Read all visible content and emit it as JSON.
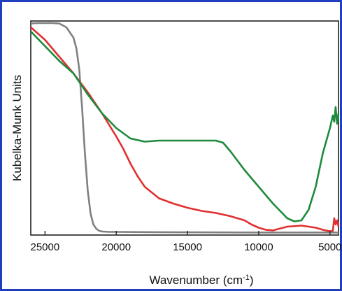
{
  "chart_data": {
    "type": "line",
    "xlabel": "Wavenumber (cm",
    "xlabel_sup": "-1",
    "xlabel_close": ")",
    "ylabel": "Kubelka-Munk Units",
    "xlim": [
      26000,
      4400
    ],
    "x_reversed": true,
    "ylim": [
      0,
      1
    ],
    "y_ticks_shown": false,
    "grid": false,
    "legend": "none",
    "x_ticks": [
      25000,
      20000,
      15000,
      10000,
      5000
    ],
    "x_tick_labels": [
      "25000",
      "20000",
      "15000",
      "10000",
      "5000"
    ],
    "series": [
      {
        "color": "#808080",
        "x": [
          26000,
          25500,
          25000,
          24500,
          24000,
          23500,
          23000,
          22800,
          22600,
          22400,
          22200,
          22000,
          21800,
          21600,
          21400,
          21200,
          21000,
          20500,
          20000,
          18000,
          15000,
          10000,
          5000,
          4400
        ],
        "y": [
          0.998,
          1.0,
          1.0,
          1.0,
          0.998,
          0.98,
          0.93,
          0.88,
          0.78,
          0.6,
          0.38,
          0.2,
          0.09,
          0.04,
          0.02,
          0.01,
          0.007,
          0.005,
          0.005,
          0.004,
          0.003,
          0.002,
          0.002,
          0.002
        ]
      },
      {
        "color": "#e03030",
        "x": [
          26000,
          25000,
          24000,
          23000,
          22000,
          21000,
          20000,
          19500,
          19000,
          18500,
          18000,
          17000,
          16000,
          15000,
          14000,
          13000,
          12000,
          11000,
          10500,
          10000,
          9500,
          9000,
          8000,
          7000,
          6000,
          5500,
          5000,
          4800,
          4700,
          4600,
          4500,
          4400
        ],
        "y": [
          0.98,
          0.92,
          0.84,
          0.76,
          0.67,
          0.57,
          0.46,
          0.4,
          0.33,
          0.27,
          0.22,
          0.165,
          0.14,
          0.12,
          0.105,
          0.095,
          0.08,
          0.06,
          0.04,
          0.025,
          0.015,
          0.012,
          0.03,
          0.035,
          0.025,
          0.015,
          0.008,
          0.01,
          0.07,
          0.04,
          0.06,
          0.03
        ]
      },
      {
        "color": "#1e8a3c",
        "x": [
          26000,
          25000,
          24000,
          23000,
          22000,
          21000,
          20000,
          19000,
          18000,
          17000,
          16000,
          15000,
          14000,
          13000,
          12500,
          12000,
          11000,
          10000,
          9000,
          8000,
          7500,
          7000,
          6500,
          6000,
          5500,
          5000,
          4800,
          4700,
          4600,
          4500,
          4400
        ],
        "y": [
          0.96,
          0.89,
          0.82,
          0.76,
          0.66,
          0.57,
          0.5,
          0.45,
          0.435,
          0.44,
          0.44,
          0.44,
          0.44,
          0.44,
          0.43,
          0.39,
          0.3,
          0.22,
          0.14,
          0.07,
          0.055,
          0.06,
          0.11,
          0.22,
          0.38,
          0.5,
          0.56,
          0.53,
          0.6,
          0.52,
          0.57
        ]
      }
    ]
  }
}
